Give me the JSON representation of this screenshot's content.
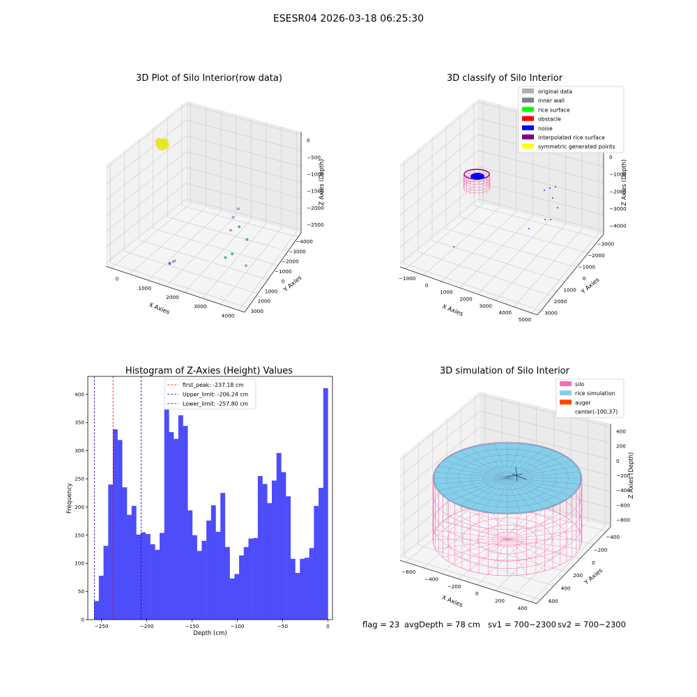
{
  "figure": {
    "suptitle": "ESESR04 2026-03-18 06:25:30",
    "footer": {
      "flag": "flag = 23",
      "avg_depth": "avgDepth = 78 cm",
      "sv1": "sv1 = 700~2300",
      "sv2": "sv2 = 700~2300"
    }
  },
  "chart_data": [
    {
      "type": "scatter3d",
      "title": "3D Plot of Silo Interior(row data)",
      "xlabel": "X Axies",
      "ylabel": "Y Axies",
      "zlabel": "Z Axies (Depth)",
      "xticks": [
        "0",
        "1000",
        "2000",
        "3000",
        "4000"
      ],
      "yticks": [
        "−4000",
        "−3000",
        "−2000",
        "−1000",
        "0",
        "1000",
        "2000",
        "3000"
      ],
      "zticks": [
        "0",
        "−500",
        "−1000",
        "−1500",
        "−2000",
        "−2500"
      ],
      "xlim": [
        -600,
        4600
      ],
      "ylim": [
        -4200,
        3600
      ],
      "zlim": [
        -2800,
        200
      ],
      "series": [
        {
          "color": "#e5e52a",
          "points": [
            [
              -300,
              3200,
              -80
            ],
            [
              -260,
              3250,
              -90
            ],
            [
              -220,
              3180,
              -100
            ],
            [
              -340,
              3150,
              -110
            ],
            [
              -280,
              3300,
              -70
            ],
            [
              -200,
              3220,
              -95
            ],
            [
              -320,
              3260,
              -85
            ],
            [
              -240,
              3140,
              -120
            ],
            [
              -360,
              3230,
              -75
            ],
            [
              -300,
              3120,
              -100
            ],
            [
              -180,
              3280,
              -90
            ],
            [
              -260,
              3190,
              -130
            ]
          ]
        },
        {
          "color": "#a596c8",
          "points": [
            [
              3300,
              -300,
              -1250
            ],
            [
              3000,
              100,
              -1700
            ],
            [
              3100,
              -600,
              -1850
            ],
            [
              4000,
              -1800,
              -2300
            ],
            [
              1700,
              -3400,
              -2300
            ],
            [
              1750,
              -3350,
              -2280
            ]
          ]
        },
        {
          "color": "#3fae8a",
          "points": [
            [
              3500,
              -900,
              -1550
            ],
            [
              3900,
              -1300,
              -1700
            ],
            [
              3400,
              -1500,
              -2200
            ],
            [
              3200,
              -1700,
              -2300
            ]
          ]
        },
        {
          "color": "#5b5898",
          "points": [
            [
              1600,
              -3500,
              -2350
            ]
          ]
        }
      ]
    },
    {
      "type": "scatter3d",
      "title": "3D classify of Silo Interior",
      "xlabel": "X Axies",
      "ylabel": "Y Axies",
      "zlabel": "Z Axies (Depth)",
      "xticks": [
        "−1000",
        "0",
        "1000",
        "2000",
        "3000",
        "4000",
        "5000"
      ],
      "yticks": [
        "−3000",
        "−2000",
        "−1000",
        "0",
        "1000",
        "2000",
        "3000"
      ],
      "zticks": [
        "1000",
        "0",
        "−1000",
        "−2000",
        "−3000",
        "−4000"
      ],
      "xlim": [
        -1500,
        5500
      ],
      "ylim": [
        -3600,
        3600
      ],
      "zlim": [
        -4400,
        1400
      ],
      "legend": [
        {
          "label": "original data",
          "color": "#b0b0b0"
        },
        {
          "label": "inner wall",
          "color": "#808080"
        },
        {
          "label": "rice surface",
          "color": "#00ff00"
        },
        {
          "label": "obstacle",
          "color": "#ff0000"
        },
        {
          "label": "noise",
          "color": "#0000ff"
        },
        {
          "label": "interpolated rice surface",
          "color": "#800080"
        },
        {
          "label": "symmetric generated points",
          "color": "#ffff00"
        }
      ],
      "legend_loc": "upper right",
      "noise_points": [
        [
          4200,
          -200,
          -1200
        ],
        [
          4400,
          -400,
          -1000
        ],
        [
          3800,
          -800,
          -1800
        ],
        [
          3600,
          -1300,
          -2700
        ],
        [
          3300,
          -1600,
          -2700
        ],
        [
          2700,
          -2300,
          -2900
        ],
        [
          200,
          -3200,
          -2600
        ],
        [
          3700,
          -300,
          -1100
        ]
      ]
    },
    {
      "type": "bar",
      "title": "Histogram of Z-Axies (Height) Values",
      "xlabel": "Depth (cm)",
      "ylabel": "Frequency",
      "xlim": [
        -265,
        5
      ],
      "ylim": [
        0,
        432
      ],
      "xticks": [
        -250,
        -200,
        -150,
        -100,
        -50,
        0
      ],
      "yticks": [
        0,
        50,
        100,
        150,
        200,
        250,
        300,
        350,
        400
      ],
      "bin_start": -258,
      "bin_width": 5.16,
      "color": "#4d4dfa",
      "values": [
        33,
        78,
        131,
        240,
        338,
        319,
        235,
        186,
        202,
        151,
        155,
        152,
        134,
        124,
        154,
        373,
        333,
        321,
        363,
        344,
        194,
        150,
        122,
        140,
        176,
        203,
        156,
        225,
        129,
        73,
        81,
        114,
        129,
        144,
        145,
        255,
        241,
        207,
        247,
        296,
        262,
        219,
        108,
        83,
        108,
        110,
        127,
        202,
        234,
        411
      ],
      "vlines": [
        {
          "x": -237.18,
          "color": "#ff0000",
          "label": "first_peak: -237.18 cm"
        },
        {
          "x": -206.24,
          "color": "#0000cc",
          "label": "Upper_limit: -206.24 cm"
        },
        {
          "x": -257.8,
          "color": "#0000cc",
          "label": "Lower_limit: -257.80 cm"
        }
      ],
      "legend_loc": "upper center"
    },
    {
      "type": "surface3d",
      "title": "3D simulation of Silo Interior",
      "xlabel": "X Axies",
      "ylabel": "Y Axies",
      "zlabel": "Z Axies (Depth)",
      "xticks": [
        "−600",
        "−400",
        "−200",
        "0",
        "200",
        "400"
      ],
      "yticks": [
        "−400",
        "−200",
        "0",
        "200",
        "400",
        "600"
      ],
      "zticks": [
        "400",
        "200",
        "0",
        "−200",
        "−400",
        "−600",
        "−800"
      ],
      "legend": [
        {
          "label": "silo",
          "color": "#ff69b4"
        },
        {
          "label": "rice simulation",
          "color": "#87ceeb"
        },
        {
          "label": "auger",
          "color": "#ff4500"
        },
        {
          "label": "center(-100,37)",
          "color": ""
        }
      ],
      "legend_loc": "upper right"
    }
  ]
}
